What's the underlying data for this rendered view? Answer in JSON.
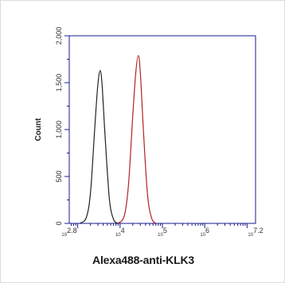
{
  "chart_data": {
    "type": "line",
    "title": "",
    "xlabel": "Alexa488-anti-KLK3",
    "ylabel": "Count",
    "x_scale": "log10",
    "xlim": [
      2.8,
      7.2
    ],
    "ylim": [
      0,
      2000
    ],
    "x_tick_labels": [
      {
        "exp": "2.8",
        "value": 2.8
      },
      {
        "exp": "4",
        "value": 4
      },
      {
        "exp": "5",
        "value": 5
      },
      {
        "exp": "6",
        "value": 6
      },
      {
        "exp": "7.2",
        "value": 7.2
      }
    ],
    "y_ticks": [
      0,
      500,
      1000,
      1500,
      2000
    ],
    "y_tick_labels": [
      "0",
      "500",
      "1,000",
      "1,500",
      "2,000"
    ],
    "series": [
      {
        "color": "#222222",
        "x": [
          3.05,
          3.2,
          3.3,
          3.4,
          3.47,
          3.53,
          3.58,
          3.65,
          3.75,
          3.85,
          3.95
        ],
        "y": [
          0,
          60,
          320,
          1000,
          1450,
          1630,
          1450,
          900,
          250,
          40,
          0
        ]
      },
      {
        "color": "#b22222",
        "x": [
          3.95,
          4.1,
          4.2,
          4.3,
          4.37,
          4.43,
          4.48,
          4.55,
          4.65,
          4.75,
          4.85
        ],
        "y": [
          0,
          80,
          420,
          1150,
          1600,
          1790,
          1600,
          1000,
          300,
          50,
          0
        ]
      }
    ],
    "grid": false,
    "legend": "none"
  },
  "colors": {
    "axes": "#1a1a8c",
    "caption": "#1a1a1a"
  }
}
